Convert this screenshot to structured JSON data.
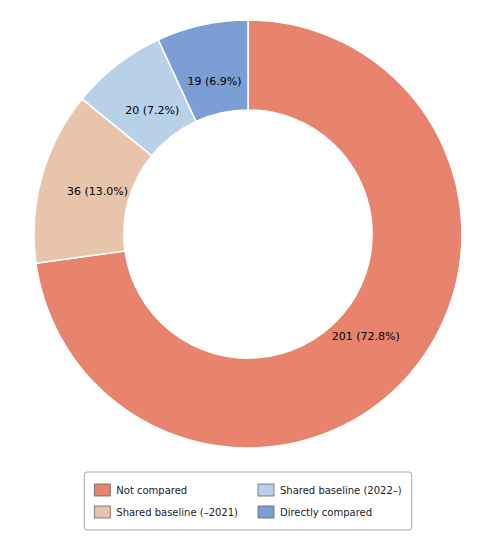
{
  "chart_data": {
    "type": "donut",
    "categories": [
      "Not compared",
      "Shared baseline (–2021)",
      "Shared baseline (2022–)",
      "Directly compared"
    ],
    "values": [
      201,
      36,
      20,
      19
    ],
    "value_labels": [
      "201 (72.8%)",
      "36 (13.0%)",
      "20 (7.2%)",
      "19 (6.9%)"
    ],
    "colors": [
      "#e8836e",
      "#e8c4aa",
      "#b8d0e8",
      "#7b9fd4"
    ],
    "data_labels": true,
    "legend": "bottom"
  }
}
